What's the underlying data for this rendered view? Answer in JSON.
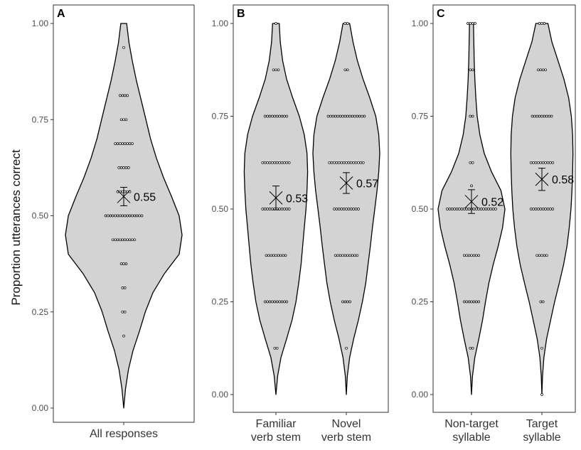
{
  "chart_data": {
    "type": "violin",
    "ylabel": "Proportion utterances correct",
    "ylim": [
      0,
      1
    ],
    "yticks": [
      "0.00",
      "0.25",
      "0.50",
      "0.75",
      "1.00"
    ],
    "grid": false,
    "panels": [
      {
        "tag": "A",
        "groups": [
          {
            "label": [
              "All responses"
            ],
            "mean": 0.55,
            "mean_label": "0.55",
            "se": 0.024,
            "density": [
              [
                0,
                0
              ],
              [
                0.05,
                0.03
              ],
              [
                0.1,
                0.08
              ],
              [
                0.15,
                0.16
              ],
              [
                0.2,
                0.27
              ],
              [
                0.25,
                0.37
              ],
              [
                0.3,
                0.5
              ],
              [
                0.35,
                0.7
              ],
              [
                0.4,
                0.95
              ],
              [
                0.45,
                1.0
              ],
              [
                0.5,
                0.95
              ],
              [
                0.55,
                0.82
              ],
              [
                0.6,
                0.68
              ],
              [
                0.65,
                0.56
              ],
              [
                0.7,
                0.46
              ],
              [
                0.75,
                0.38
              ],
              [
                0.8,
                0.3
              ],
              [
                0.85,
                0.22
              ],
              [
                0.9,
                0.15
              ],
              [
                0.95,
                0.09
              ],
              [
                1.0,
                0.05
              ]
            ],
            "points": [
              {
                "y": 0.9375,
                "n": 1
              },
              {
                "y": 0.8125,
                "n": 4
              },
              {
                "y": 0.75,
                "n": 3
              },
              {
                "y": 0.6875,
                "n": 8
              },
              {
                "y": 0.625,
                "n": 5
              },
              {
                "y": 0.5625,
                "n": 6
              },
              {
                "y": 0.5,
                "n": 16
              },
              {
                "y": 0.4375,
                "n": 10
              },
              {
                "y": 0.375,
                "n": 3
              },
              {
                "y": 0.3125,
                "n": 2
              },
              {
                "y": 0.25,
                "n": 2
              },
              {
                "y": 0.1875,
                "n": 1
              }
            ]
          }
        ]
      },
      {
        "tag": "B",
        "groups": [
          {
            "label": [
              "Familiar",
              "verb stem"
            ],
            "mean": 0.53,
            "mean_label": "0.53",
            "se": 0.032,
            "density": [
              [
                0,
                0
              ],
              [
                0.05,
                0.05
              ],
              [
                0.1,
                0.15
              ],
              [
                0.15,
                0.32
              ],
              [
                0.2,
                0.48
              ],
              [
                0.25,
                0.6
              ],
              [
                0.3,
                0.68
              ],
              [
                0.35,
                0.75
              ],
              [
                0.4,
                0.8
              ],
              [
                0.45,
                0.85
              ],
              [
                0.5,
                0.9
              ],
              [
                0.55,
                0.93
              ],
              [
                0.6,
                0.95
              ],
              [
                0.65,
                0.93
              ],
              [
                0.7,
                0.85
              ],
              [
                0.75,
                0.7
              ],
              [
                0.8,
                0.5
              ],
              [
                0.85,
                0.32
              ],
              [
                0.9,
                0.2
              ],
              [
                0.95,
                0.13
              ],
              [
                1.0,
                0.1
              ]
            ],
            "points": [
              {
                "y": 1.0,
                "n": 1
              },
              {
                "y": 0.875,
                "n": 3
              },
              {
                "y": 0.75,
                "n": 10
              },
              {
                "y": 0.625,
                "n": 12
              },
              {
                "y": 0.5,
                "n": 12
              },
              {
                "y": 0.375,
                "n": 9
              },
              {
                "y": 0.25,
                "n": 10
              },
              {
                "y": 0.125,
                "n": 2
              }
            ]
          },
          {
            "label": [
              "Novel",
              "verb stem"
            ],
            "mean": 0.57,
            "mean_label": "0.57",
            "se": 0.028,
            "density": [
              [
                0,
                0
              ],
              [
                0.05,
                0.03
              ],
              [
                0.1,
                0.1
              ],
              [
                0.15,
                0.22
              ],
              [
                0.2,
                0.36
              ],
              [
                0.25,
                0.48
              ],
              [
                0.3,
                0.58
              ],
              [
                0.35,
                0.65
              ],
              [
                0.4,
                0.72
              ],
              [
                0.45,
                0.78
              ],
              [
                0.5,
                0.85
              ],
              [
                0.55,
                0.92
              ],
              [
                0.6,
                0.97
              ],
              [
                0.65,
                1.0
              ],
              [
                0.7,
                0.97
              ],
              [
                0.75,
                0.88
              ],
              [
                0.8,
                0.7
              ],
              [
                0.85,
                0.5
              ],
              [
                0.9,
                0.33
              ],
              [
                0.95,
                0.2
              ],
              [
                1.0,
                0.1
              ]
            ],
            "points": [
              {
                "y": 1.0,
                "n": 2
              },
              {
                "y": 0.875,
                "n": 2
              },
              {
                "y": 0.75,
                "n": 16
              },
              {
                "y": 0.625,
                "n": 15
              },
              {
                "y": 0.5,
                "n": 11
              },
              {
                "y": 0.375,
                "n": 10
              },
              {
                "y": 0.25,
                "n": 4
              },
              {
                "y": 0.125,
                "n": 1
              }
            ]
          }
        ]
      },
      {
        "tag": "C",
        "groups": [
          {
            "label": [
              "Non-target",
              "syllable"
            ],
            "mean": 0.52,
            "mean_label": "0.52",
            "se": 0.032,
            "density": [
              [
                0,
                0
              ],
              [
                0.05,
                0.03
              ],
              [
                0.1,
                0.1
              ],
              [
                0.15,
                0.22
              ],
              [
                0.2,
                0.33
              ],
              [
                0.25,
                0.42
              ],
              [
                0.3,
                0.52
              ],
              [
                0.35,
                0.65
              ],
              [
                0.4,
                0.8
              ],
              [
                0.45,
                0.93
              ],
              [
                0.5,
                1.0
              ],
              [
                0.55,
                0.88
              ],
              [
                0.6,
                0.6
              ],
              [
                0.65,
                0.38
              ],
              [
                0.7,
                0.25
              ],
              [
                0.75,
                0.17
              ],
              [
                0.8,
                0.13
              ],
              [
                0.85,
                0.1
              ],
              [
                0.9,
                0.08
              ],
              [
                0.95,
                0.07
              ],
              [
                1.0,
                0.06
              ]
            ],
            "points": [
              {
                "y": 1.0,
                "n": 4
              },
              {
                "y": 0.875,
                "n": 2
              },
              {
                "y": 0.75,
                "n": 2
              },
              {
                "y": 0.625,
                "n": 2
              },
              {
                "y": 0.5625,
                "n": 1
              },
              {
                "y": 0.5,
                "n": 21
              },
              {
                "y": 0.375,
                "n": 7
              },
              {
                "y": 0.25,
                "n": 7
              },
              {
                "y": 0.125,
                "n": 2
              }
            ]
          },
          {
            "label": [
              "Target",
              "syllable"
            ],
            "mean": 0.58,
            "mean_label": "0.58",
            "se": 0.03,
            "density": [
              [
                0,
                0
              ],
              [
                0.05,
                0.02
              ],
              [
                0.1,
                0.06
              ],
              [
                0.15,
                0.14
              ],
              [
                0.2,
                0.26
              ],
              [
                0.25,
                0.38
              ],
              [
                0.3,
                0.52
              ],
              [
                0.35,
                0.65
              ],
              [
                0.4,
                0.75
              ],
              [
                0.45,
                0.82
              ],
              [
                0.5,
                0.87
              ],
              [
                0.55,
                0.9
              ],
              [
                0.6,
                0.92
              ],
              [
                0.65,
                0.93
              ],
              [
                0.7,
                0.92
              ],
              [
                0.75,
                0.88
              ],
              [
                0.8,
                0.8
              ],
              [
                0.85,
                0.66
              ],
              [
                0.9,
                0.48
              ],
              [
                0.95,
                0.3
              ],
              [
                1.0,
                0.18
              ]
            ],
            "points": [
              {
                "y": 1.0,
                "n": 3
              },
              {
                "y": 0.875,
                "n": 4
              },
              {
                "y": 0.75,
                "n": 9
              },
              {
                "y": 0.625,
                "n": 10
              },
              {
                "y": 0.5,
                "n": 10
              },
              {
                "y": 0.375,
                "n": 5
              },
              {
                "y": 0.25,
                "n": 2
              },
              {
                "y": 0.125,
                "n": 1
              },
              {
                "y": 0.0,
                "n": 1
              }
            ]
          }
        ]
      }
    ]
  }
}
